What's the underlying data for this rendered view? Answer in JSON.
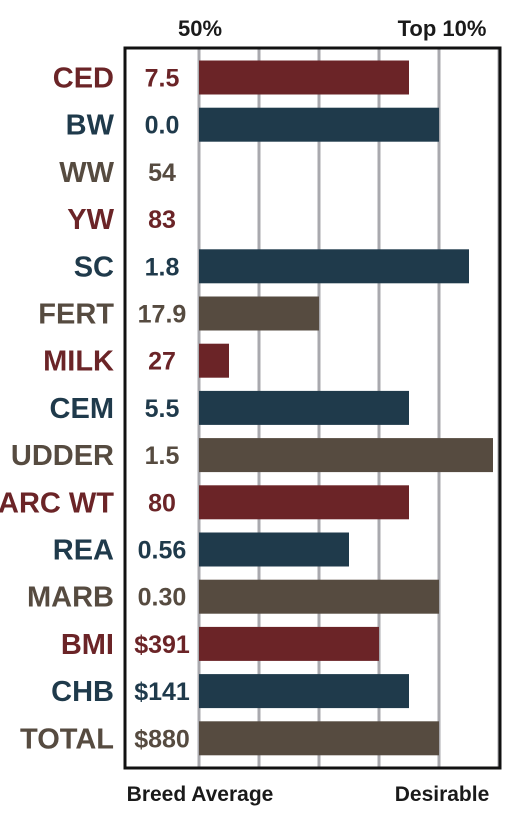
{
  "chart_data": {
    "type": "bar",
    "orientation": "horizontal",
    "top_labels": {
      "left": "50%",
      "right": "Top 10%"
    },
    "bottom_labels": {
      "left": "Breed Average",
      "right": "Desirable"
    },
    "xlim": [
      0,
      5
    ],
    "grid": true,
    "colors": {
      "red": "#6b2427",
      "blue": "#1f3a4b",
      "brown": "#564b40"
    },
    "rows": [
      {
        "trait": "CED",
        "value": "7.5",
        "bar": 3.5,
        "color": "red"
      },
      {
        "trait": "BW",
        "value": "0.0",
        "bar": 4.0,
        "color": "blue"
      },
      {
        "trait": "WW",
        "value": "54",
        "bar": 0,
        "color": "brown"
      },
      {
        "trait": "YW",
        "value": "83",
        "bar": 0,
        "color": "red"
      },
      {
        "trait": "SC",
        "value": "1.8",
        "bar": 4.5,
        "color": "blue"
      },
      {
        "trait": "FERT",
        "value": "17.9",
        "bar": 2.0,
        "color": "brown"
      },
      {
        "trait": "MILK",
        "value": "27",
        "bar": 0.5,
        "color": "red"
      },
      {
        "trait": "CEM",
        "value": "5.5",
        "bar": 3.5,
        "color": "blue"
      },
      {
        "trait": "UDDER",
        "value": "1.5",
        "bar": 4.9,
        "color": "brown"
      },
      {
        "trait": "CARC WT",
        "value": "80",
        "bar": 3.5,
        "color": "red"
      },
      {
        "trait": "REA",
        "value": "0.56",
        "bar": 2.5,
        "color": "blue"
      },
      {
        "trait": "MARB",
        "value": "0.30",
        "bar": 4.0,
        "color": "brown"
      },
      {
        "trait": "BMI",
        "value": "$391",
        "bar": 3.0,
        "color": "red"
      },
      {
        "trait": "CHB",
        "value": "$141",
        "bar": 3.5,
        "color": "blue"
      },
      {
        "trait": "TOTAL",
        "value": "$880",
        "bar": 4.0,
        "color": "brown"
      }
    ]
  }
}
